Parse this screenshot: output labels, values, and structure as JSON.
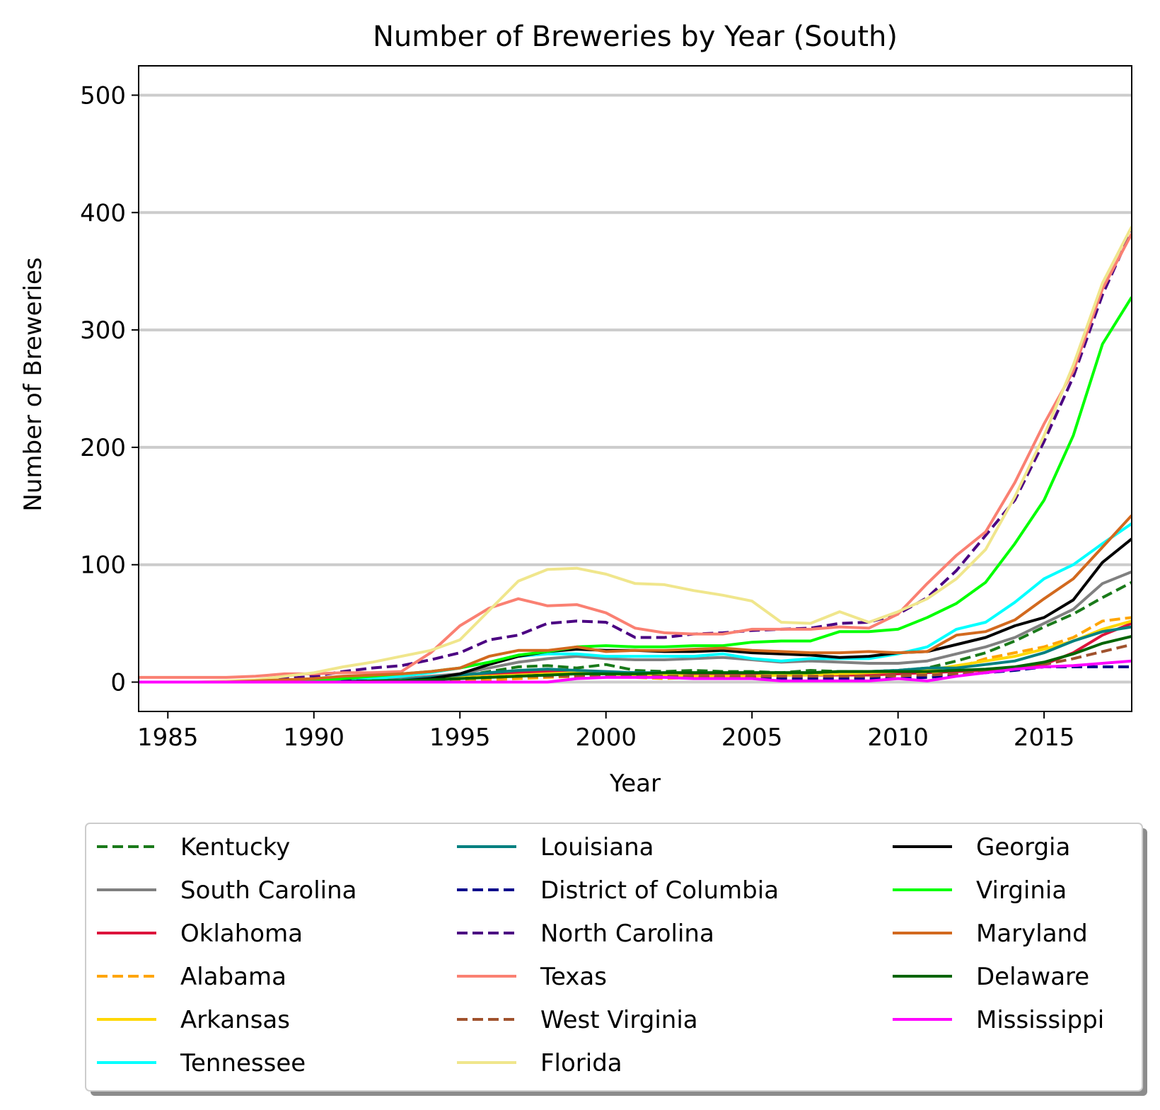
{
  "chart_data": {
    "type": "line",
    "title": "Number of Breweries by Year (South)",
    "xlabel": "Year",
    "ylabel": "Number of Breweries",
    "xlim": [
      1984,
      2018
    ],
    "ylim": [
      -25,
      525
    ],
    "xticks": [
      1985,
      1990,
      1995,
      2000,
      2005,
      2010,
      2015
    ],
    "yticks": [
      0,
      100,
      200,
      300,
      400,
      500
    ],
    "grid": "horizontal",
    "legend_position": "bottom",
    "x": [
      1984,
      1985,
      1986,
      1987,
      1988,
      1989,
      1990,
      1991,
      1992,
      1993,
      1994,
      1995,
      1996,
      1997,
      1998,
      1999,
      2000,
      2001,
      2002,
      2003,
      2004,
      2005,
      2006,
      2007,
      2008,
      2009,
      2010,
      2011,
      2012,
      2013,
      2014,
      2015,
      2016,
      2017,
      2018
    ],
    "series": [
      {
        "name": "Kentucky",
        "color": "#1a7a1a",
        "dash": "dashed",
        "values": [
          0,
          0,
          0,
          0,
          0,
          0,
          0,
          1,
          2,
          3,
          4,
          5,
          9,
          13,
          14,
          12,
          15,
          10,
          9,
          10,
          9,
          9,
          8,
          10,
          9,
          9,
          10,
          12,
          18,
          25,
          35,
          47,
          58,
          72,
          85
        ]
      },
      {
        "name": "South Carolina",
        "color": "#808080",
        "dash": "solid",
        "values": [
          0,
          0,
          0,
          0,
          0,
          0,
          0,
          1,
          2,
          3,
          5,
          7,
          12,
          17,
          20,
          22,
          20,
          19,
          19,
          20,
          21,
          19,
          17,
          18,
          17,
          16,
          16,
          18,
          24,
          30,
          38,
          50,
          62,
          84,
          94
        ]
      },
      {
        "name": "Oklahoma",
        "color": "#dc143c",
        "dash": "solid",
        "values": [
          0,
          0,
          0,
          0,
          0,
          0,
          1,
          1,
          2,
          2,
          3,
          5,
          7,
          8,
          9,
          9,
          8,
          8,
          7,
          7,
          7,
          6,
          6,
          6,
          6,
          6,
          7,
          8,
          9,
          10,
          12,
          15,
          25,
          40,
          50
        ]
      },
      {
        "name": "Alabama",
        "color": "#ffa500",
        "dash": "dashed",
        "values": [
          0,
          0,
          0,
          0,
          0,
          0,
          0,
          0,
          0,
          0,
          1,
          1,
          2,
          3,
          4,
          5,
          5,
          4,
          3,
          4,
          4,
          4,
          3,
          3,
          3,
          4,
          5,
          7,
          12,
          20,
          25,
          30,
          38,
          52,
          55
        ]
      },
      {
        "name": "Arkansas",
        "color": "#ffd700",
        "dash": "solid",
        "values": [
          0,
          0,
          0,
          0,
          0,
          0,
          0,
          1,
          1,
          2,
          3,
          4,
          5,
          6,
          7,
          8,
          7,
          6,
          6,
          5,
          5,
          5,
          6,
          6,
          7,
          8,
          9,
          10,
          14,
          18,
          22,
          28,
          35,
          45,
          52
        ]
      },
      {
        "name": "Tennessee",
        "color": "#00ffff",
        "dash": "solid",
        "values": [
          0,
          0,
          0,
          0,
          0,
          0,
          1,
          2,
          3,
          5,
          8,
          12,
          17,
          22,
          24,
          24,
          22,
          22,
          22,
          22,
          24,
          20,
          18,
          20,
          20,
          20,
          24,
          30,
          45,
          51,
          68,
          88,
          100,
          118,
          135
        ]
      },
      {
        "name": "Louisiana",
        "color": "#008080",
        "dash": "solid",
        "values": [
          0,
          0,
          0,
          0,
          0,
          0,
          0,
          1,
          1,
          2,
          4,
          6,
          8,
          10,
          11,
          10,
          9,
          8,
          8,
          8,
          8,
          8,
          8,
          8,
          9,
          9,
          10,
          12,
          12,
          15,
          18,
          25,
          35,
          43,
          47
        ]
      },
      {
        "name": "District of Columbia",
        "color": "#00008b",
        "dash": "dashed",
        "values": [
          0,
          0,
          0,
          0,
          0,
          0,
          0,
          1,
          1,
          1,
          2,
          3,
          4,
          5,
          6,
          6,
          6,
          5,
          5,
          4,
          4,
          4,
          3,
          3,
          3,
          3,
          3,
          4,
          6,
          8,
          10,
          13,
          13,
          13,
          13
        ]
      },
      {
        "name": "North Carolina",
        "color": "#4b0082",
        "dash": "dashed",
        "values": [
          0,
          0,
          0,
          0,
          1,
          3,
          5,
          9,
          12,
          14,
          19,
          25,
          36,
          40,
          50,
          52,
          51,
          38,
          38,
          41,
          42,
          44,
          45,
          46,
          50,
          51,
          58,
          72,
          95,
          125,
          155,
          205,
          260,
          330,
          385
        ]
      },
      {
        "name": "Texas",
        "color": "#fa8072",
        "dash": "solid",
        "values": [
          4,
          4,
          4,
          4,
          5,
          7,
          7,
          8,
          8,
          9,
          25,
          48,
          63,
          71,
          65,
          66,
          59,
          46,
          42,
          41,
          41,
          45,
          45,
          45,
          47,
          46,
          58,
          84,
          108,
          128,
          170,
          220,
          265,
          335,
          382
        ]
      },
      {
        "name": "West Virginia",
        "color": "#a0522d",
        "dash": "dashed",
        "values": [
          0,
          0,
          0,
          0,
          0,
          0,
          0,
          0,
          1,
          1,
          2,
          3,
          4,
          5,
          5,
          5,
          5,
          5,
          5,
          5,
          5,
          5,
          5,
          5,
          5,
          5,
          6,
          6,
          7,
          9,
          12,
          15,
          20,
          26,
          32
        ]
      },
      {
        "name": "Florida",
        "color": "#f0e68c",
        "dash": "solid",
        "values": [
          0,
          0,
          0,
          1,
          2,
          5,
          8,
          13,
          17,
          22,
          27,
          36,
          61,
          86,
          96,
          97,
          92,
          84,
          83,
          78,
          74,
          69,
          51,
          50,
          60,
          51,
          60,
          71,
          88,
          113,
          158,
          210,
          270,
          340,
          388
        ]
      },
      {
        "name": "Georgia",
        "color": "#000000",
        "dash": "solid",
        "values": [
          0,
          0,
          0,
          0,
          0,
          0,
          0,
          0,
          0,
          1,
          3,
          7,
          15,
          22,
          26,
          28,
          27,
          27,
          26,
          26,
          27,
          25,
          24,
          23,
          21,
          22,
          25,
          26,
          32,
          38,
          48,
          55,
          70,
          102,
          122
        ]
      },
      {
        "name": "Virginia",
        "color": "#00ff00",
        "dash": "solid",
        "values": [
          0,
          0,
          0,
          0,
          0,
          0,
          1,
          3,
          5,
          7,
          9,
          12,
          17,
          23,
          26,
          30,
          31,
          30,
          30,
          31,
          31,
          34,
          35,
          35,
          43,
          43,
          45,
          55,
          67,
          85,
          118,
          155,
          210,
          288,
          328
        ]
      },
      {
        "name": "Maryland",
        "color": "#d2691e",
        "dash": "solid",
        "values": [
          0,
          0,
          0,
          0,
          1,
          2,
          3,
          5,
          6,
          7,
          9,
          12,
          22,
          27,
          27,
          30,
          26,
          27,
          27,
          28,
          29,
          27,
          26,
          25,
          25,
          26,
          25,
          26,
          40,
          43,
          53,
          71,
          88,
          115,
          142
        ]
      },
      {
        "name": "Delaware",
        "color": "#006400",
        "dash": "solid",
        "values": [
          0,
          0,
          0,
          0,
          0,
          0,
          0,
          0,
          1,
          1,
          2,
          3,
          4,
          5,
          6,
          7,
          7,
          7,
          8,
          8,
          8,
          8,
          8,
          8,
          9,
          9,
          9,
          9,
          10,
          11,
          13,
          17,
          24,
          33,
          39
        ]
      },
      {
        "name": "Mississippi",
        "color": "#ff00ff",
        "dash": "solid",
        "values": [
          0,
          0,
          0,
          0,
          0,
          0,
          0,
          0,
          0,
          0,
          0,
          0,
          0,
          0,
          0,
          3,
          4,
          4,
          4,
          3,
          3,
          3,
          1,
          1,
          1,
          1,
          3,
          1,
          5,
          8,
          11,
          13,
          14,
          16,
          18
        ]
      }
    ]
  }
}
